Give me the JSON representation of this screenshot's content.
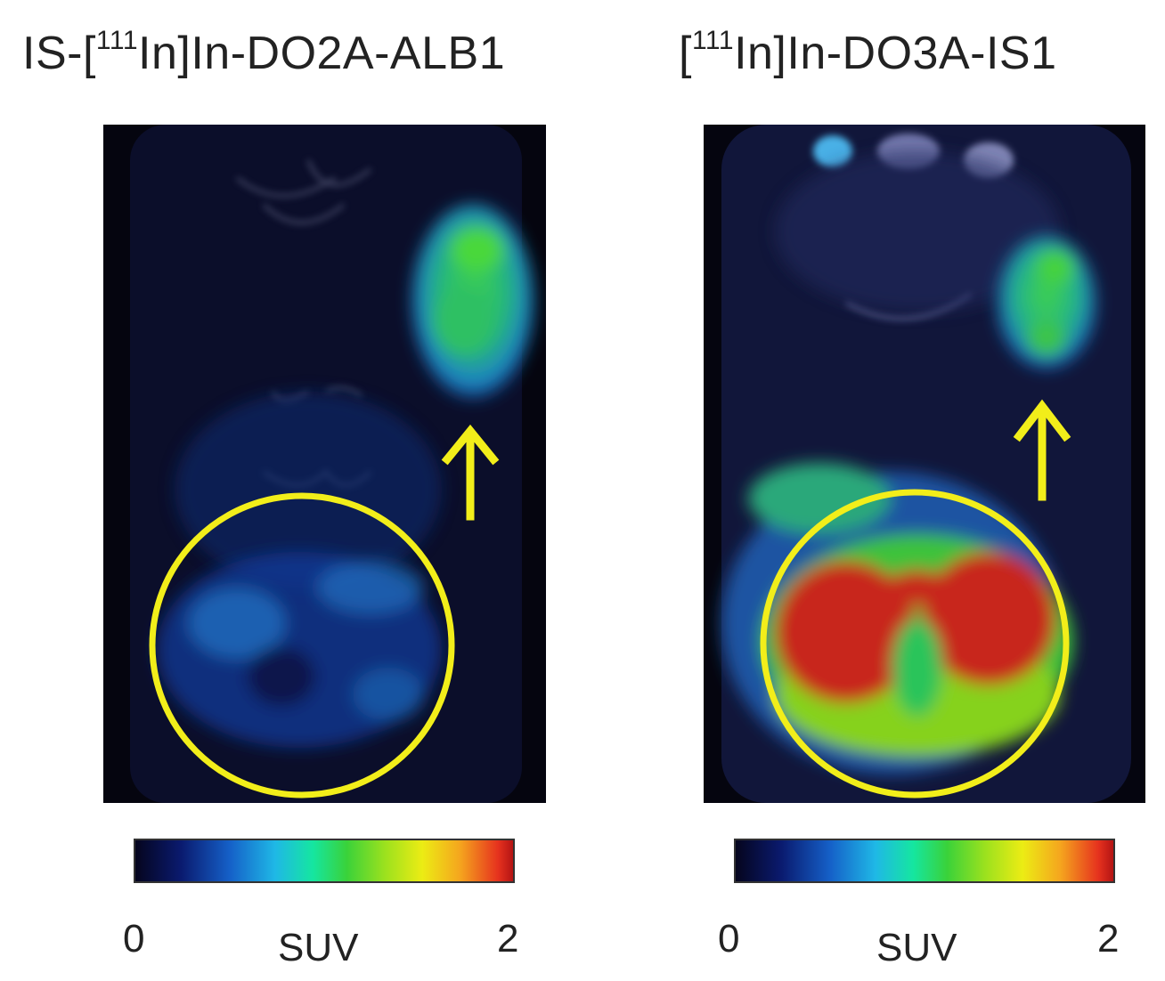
{
  "panels": [
    {
      "title_prefix": "IS-[",
      "isotope_mass": "111",
      "title_suffix": "In]In-DO2A-ALB1",
      "colorbar": {
        "min_label": "0",
        "max_label": "2",
        "unit_label": "SUV"
      }
    },
    {
      "title_prefix": "[",
      "isotope_mass": "111",
      "title_suffix": "In]In-DO3A-IS1",
      "colorbar": {
        "min_label": "0",
        "max_label": "2",
        "unit_label": "SUV"
      }
    }
  ],
  "colors": {
    "annotation": "#f2ee1a",
    "scan_background": "#05050f",
    "kidney_high_uptake": "#c8281e"
  }
}
